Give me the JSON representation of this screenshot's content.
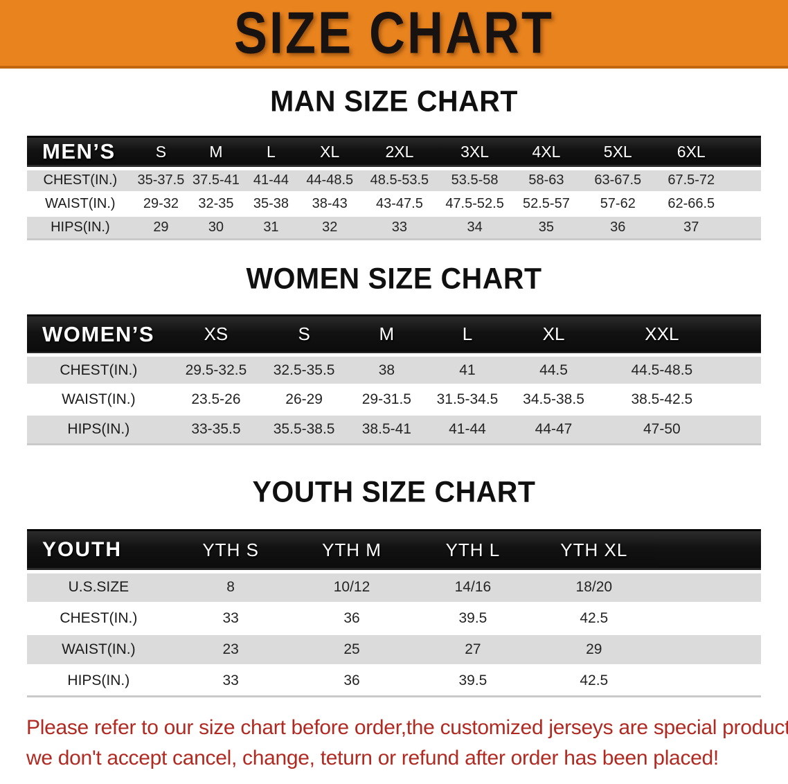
{
  "banner": {
    "title": "SIZE CHART"
  },
  "tables": {
    "men": {
      "heading": "MAN SIZE CHART",
      "label": "MEN’S",
      "sizes": [
        "S",
        "M",
        "L",
        "XL",
        "2XL",
        "3XL",
        "4XL",
        "5XL",
        "6XL"
      ],
      "rows": [
        {
          "label": "CHEST(IN.)",
          "values": [
            "35-37.5",
            "37.5-41",
            "41-44",
            "44-48.5",
            "48.5-53.5",
            "53.5-58",
            "58-63",
            "63-67.5",
            "67.5-72"
          ]
        },
        {
          "label": "WAIST(IN.)",
          "values": [
            "29-32",
            "32-35",
            "35-38",
            "38-43",
            "43-47.5",
            "47.5-52.5",
            "52.5-57",
            "57-62",
            "62-66.5"
          ]
        },
        {
          "label": "HIPS(IN.)",
          "values": [
            "29",
            "30",
            "31",
            "32",
            "33",
            "34",
            "35",
            "36",
            "37"
          ]
        }
      ]
    },
    "women": {
      "heading": "WOMEN SIZE CHART",
      "label": "WOMEN’S",
      "sizes": [
        "XS",
        "S",
        "M",
        "L",
        "XL",
        "XXL"
      ],
      "rows": [
        {
          "label": "CHEST(IN.)",
          "values": [
            "29.5-32.5",
            "32.5-35.5",
            "38",
            "41",
            "44.5",
            "44.5-48.5"
          ]
        },
        {
          "label": "WAIST(IN.)",
          "values": [
            "23.5-26",
            "26-29",
            "29-31.5",
            "31.5-34.5",
            "34.5-38.5",
            "38.5-42.5"
          ]
        },
        {
          "label": "HIPS(IN.)",
          "values": [
            "33-35.5",
            "35.5-38.5",
            "38.5-41",
            "41-44",
            "44-47",
            "47-50"
          ]
        }
      ]
    },
    "youth": {
      "heading": "YOUTH SIZE CHART",
      "label": "YOUTH",
      "sizes": [
        "YTH S",
        "YTH M",
        "YTH L",
        "YTH XL"
      ],
      "rows": [
        {
          "label": "U.S.SIZE",
          "values": [
            "8",
            "10/12",
            "14/16",
            "18/20"
          ]
        },
        {
          "label": "CHEST(IN.)",
          "values": [
            "33",
            "36",
            "39.5",
            "42.5"
          ]
        },
        {
          "label": "WAIST(IN.)",
          "values": [
            "23",
            "25",
            "27",
            "29"
          ]
        },
        {
          "label": "HIPS(IN.)",
          "values": [
            "33",
            "36",
            "39.5",
            "42.5"
          ]
        }
      ]
    }
  },
  "disclaimer": {
    "line1": "Please refer to our size chart before order,the customized jerseys are special products,",
    "line2": "we don't accept cancel, change, teturn or refund after order has been placed!"
  },
  "colors": {
    "banner_orange": "#E8831E",
    "banner_edge": "#C2660F",
    "header_band_black": "#141414",
    "row_stripe_gray": "#DBDBDB",
    "disclaimer_red": "#B02A22"
  }
}
